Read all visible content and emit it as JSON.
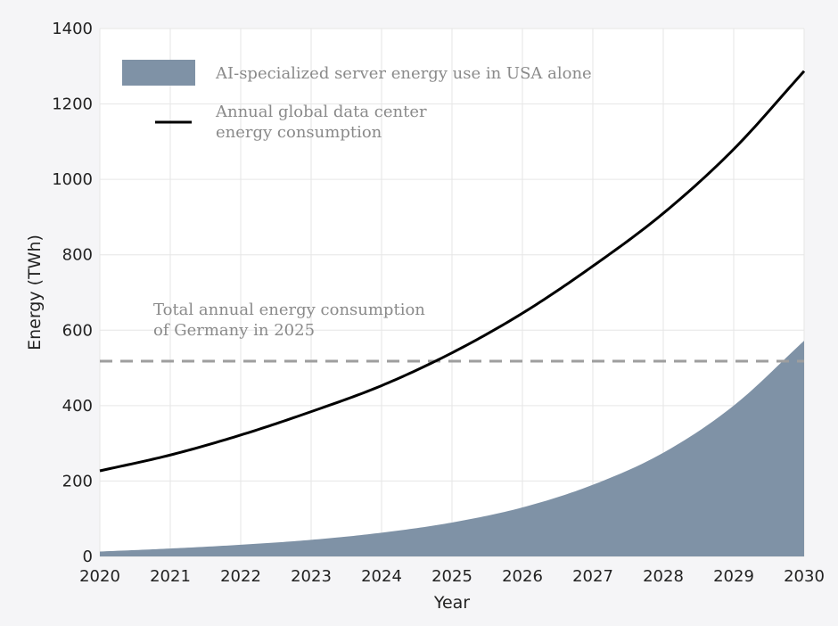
{
  "chart_data": {
    "type": "line",
    "xlabel": "Year",
    "ylabel": "Energy (TWh)",
    "xlim": [
      2020,
      2030
    ],
    "ylim": [
      0,
      1400
    ],
    "x_ticks": [
      2020,
      2021,
      2022,
      2023,
      2024,
      2025,
      2026,
      2027,
      2028,
      2029,
      2030
    ],
    "y_ticks": [
      0,
      200,
      400,
      600,
      800,
      1000,
      1200,
      1400
    ],
    "grid": true,
    "legend_position": "top-left",
    "series": [
      {
        "name": "AI-specialized server energy use in USA alone",
        "kind": "area",
        "color": "#7f92a6",
        "x": [
          2020,
          2021,
          2022,
          2023,
          2024,
          2025,
          2026,
          2027,
          2028,
          2029,
          2030
        ],
        "values": [
          13,
          21,
          31,
          44,
          63,
          90,
          130,
          190,
          275,
          400,
          572
        ]
      },
      {
        "name": "Annual global data center energy consumption",
        "kind": "line",
        "color": "#000000",
        "x": [
          2020,
          2021,
          2022,
          2023,
          2024,
          2025,
          2026,
          2027,
          2028,
          2029,
          2030
        ],
        "values": [
          227,
          269,
          322,
          384,
          453,
          540,
          645,
          770,
          910,
          1080,
          1287
        ]
      }
    ],
    "reference_line": {
      "y": 518,
      "color": "#9e9e9e",
      "label_lines": [
        "Total annual energy consumption",
        "of Germany in 2025"
      ]
    }
  }
}
